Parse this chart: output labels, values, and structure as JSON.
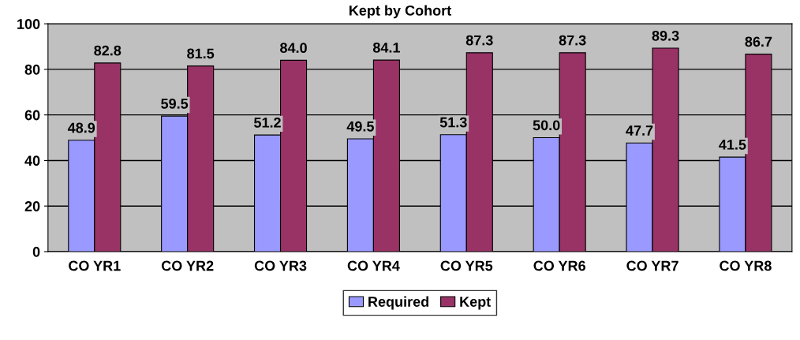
{
  "chart_data": {
    "type": "bar",
    "title": "Kept by Cohort",
    "categories": [
      "CO YR1",
      "CO YR2",
      "CO YR3",
      "CO YR4",
      "CO YR5",
      "CO YR6",
      "CO YR7",
      "CO YR8"
    ],
    "series": [
      {
        "name": "Required",
        "color": "#9999ff",
        "values": [
          48.9,
          59.5,
          51.2,
          49.5,
          51.3,
          50.0,
          47.7,
          41.5
        ],
        "value_labels": [
          "48.9",
          "59.5",
          "51.2",
          "49.5",
          "51.3",
          "50.0",
          "47.7",
          "41.5"
        ]
      },
      {
        "name": "Kept",
        "color": "#993366",
        "values": [
          82.8,
          81.5,
          84.0,
          84.1,
          87.3,
          87.3,
          89.3,
          86.7
        ],
        "value_labels": [
          "82.8",
          "81.5",
          "84.0",
          "84.1",
          "87.3",
          "87.3",
          "89.3",
          "86.7"
        ]
      }
    ],
    "ylim": [
      0,
      100
    ],
    "yticks": [
      0,
      20,
      40,
      60,
      80,
      100
    ],
    "grid": "y",
    "legend": "bottom"
  }
}
